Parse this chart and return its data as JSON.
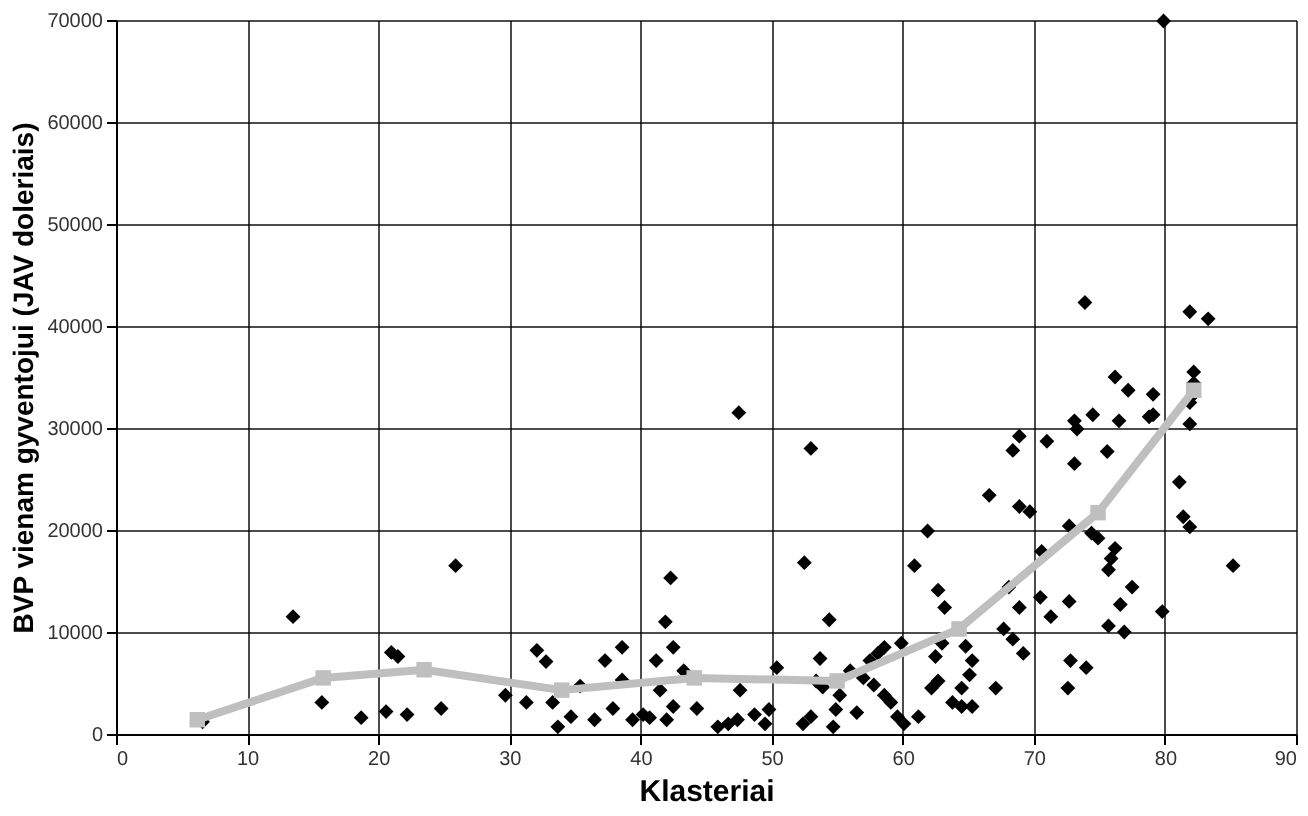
{
  "chart_data": {
    "type": "scatter",
    "xlabel": "Klasteriai",
    "ylabel": "BVP vienam gyventojui (JAV doleriais)",
    "xlim": [
      0,
      90
    ],
    "ylim": [
      0,
      70000
    ],
    "xticks": [
      0,
      10,
      20,
      30,
      40,
      50,
      60,
      70,
      80,
      90
    ],
    "yticks": [
      0,
      10000,
      20000,
      30000,
      40000,
      50000,
      60000,
      70000
    ],
    "grid": true,
    "series": [
      {
        "marker": "diamond",
        "color": "#000000",
        "x": [
          6.6,
          13.5,
          15.7,
          18.7,
          20.6,
          21.0,
          21.5,
          22.2,
          24.8,
          25.9,
          29.7,
          31.3,
          32.1,
          32.8,
          33.3,
          33.7,
          34.7,
          35.4,
          36.5,
          37.3,
          37.9,
          38.6,
          38.6,
          39.4,
          40.2,
          40.7,
          41.2,
          41.5,
          41.9,
          42.3,
          42.5,
          42.0,
          42.5,
          43.3,
          44.3,
          45.9,
          46.7,
          47.4,
          47.6,
          48.7,
          49.5,
          49.8,
          50.4,
          52.5,
          52.4,
          53.0,
          53.7,
          53.4,
          54.4,
          53.9,
          54.7,
          55.2,
          54.9,
          56.0,
          57.0,
          56.5,
          57.5,
          58.1,
          58.6,
          57.8,
          58.6,
          59.1,
          59.6,
          59.9,
          60.9,
          61.9,
          62.7,
          63.2,
          60.1,
          61.2,
          62.5,
          63.0,
          62.2,
          62.7,
          63.8,
          64.5,
          47.5,
          53.0,
          79.9,
          73.9,
          81.9,
          83.3,
          82.2,
          82.2,
          82.2,
          81.9,
          81.9,
          76.2,
          77.2,
          79.1,
          79.1,
          78.8,
          76.5,
          74.5,
          73.1,
          73.3,
          71.0,
          68.9,
          68.4,
          73.1,
          75.6,
          66.6,
          68.9,
          69.7,
          72.7,
          74.4,
          74.9,
          81.1,
          81.4,
          81.9,
          70.6,
          76.2,
          75.9,
          75.7,
          77.5,
          85.2,
          68.1,
          68.9,
          70.5,
          71.3,
          72.7,
          76.6,
          79.8,
          75.7,
          76.9,
          67.7,
          68.4,
          69.2,
          72.8,
          74.0,
          72.6,
          67.1,
          64.8,
          65.3,
          65.1,
          64.5,
          65.3
        ],
        "values": [
          1200,
          11500,
          3100,
          1600,
          2200,
          8000,
          7600,
          1900,
          2500,
          16500,
          3800,
          3100,
          8200,
          7100,
          3100,
          700,
          1700,
          4700,
          1400,
          7200,
          2500,
          8500,
          5300,
          1400,
          1900,
          1600,
          7200,
          4300,
          11000,
          15300,
          8500,
          1400,
          2700,
          6200,
          2500,
          700,
          1000,
          1400,
          4300,
          1900,
          1000,
          2400,
          6500,
          16800,
          1000,
          1700,
          7400,
          5200,
          11200,
          4600,
          700,
          3800,
          2400,
          6200,
          5500,
          2100,
          7200,
          7900,
          8500,
          4800,
          3800,
          3100,
          1700,
          8900,
          16500,
          19900,
          14100,
          12400,
          1000,
          1700,
          7600,
          8900,
          4500,
          5200,
          3100,
          2700,
          31500,
          28000,
          69900,
          42300,
          41400,
          40700,
          35500,
          34400,
          33300,
          32500,
          30400,
          35000,
          33700,
          33300,
          31300,
          31100,
          30700,
          31300,
          30700,
          29900,
          28700,
          29200,
          27800,
          26500,
          27700,
          23400,
          22300,
          21800,
          20400,
          19700,
          19200,
          24700,
          21300,
          20300,
          17900,
          18200,
          17200,
          16100,
          14400,
          16500,
          14400,
          12400,
          13400,
          11500,
          13000,
          12700,
          12000,
          10600,
          10000,
          10300,
          9300,
          7900,
          7200,
          6500,
          4500,
          4500,
          8600,
          7200,
          5800,
          4500,
          2700
        ]
      },
      {
        "type": "line",
        "marker": "square",
        "color": "#bfbfbf",
        "x": [
          6.2,
          15.8,
          23.5,
          34.0,
          44.1,
          55.0,
          64.3,
          74.9,
          82.2
        ],
        "values": [
          1400,
          5500,
          6300,
          4300,
          5500,
          5200,
          10300,
          21700,
          33700
        ]
      }
    ]
  }
}
